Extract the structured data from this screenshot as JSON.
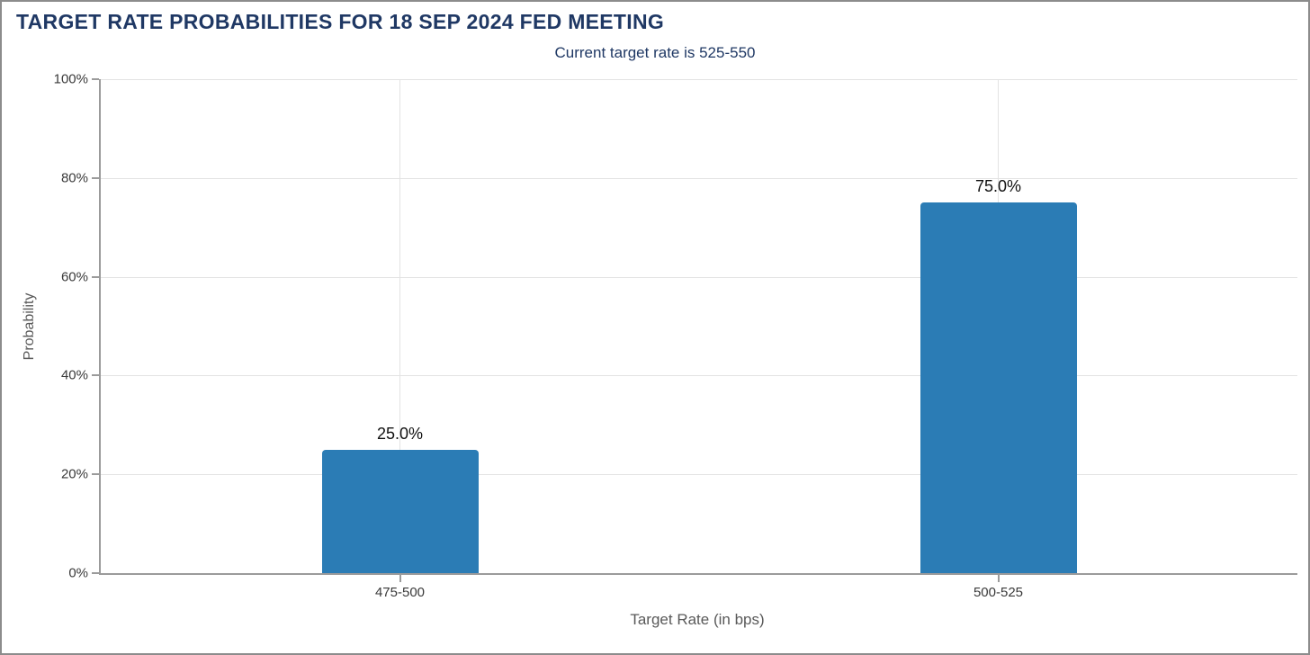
{
  "chart_data": {
    "type": "bar",
    "title": "TARGET RATE PROBABILITIES FOR 18 SEP 2024 FED MEETING",
    "subtitle": "Current target rate is 525-550",
    "xlabel": "Target Rate (in bps)",
    "ylabel": "Probability",
    "categories": [
      "475-500",
      "500-525"
    ],
    "values": [
      25.0,
      75.0
    ],
    "value_labels": [
      "25.0%",
      "75.0%"
    ],
    "ylim": [
      0,
      100
    ],
    "yticks": [
      0,
      20,
      40,
      60,
      80,
      100
    ],
    "ytick_labels": [
      "0%",
      "20%",
      "40%",
      "60%",
      "80%",
      "100%"
    ],
    "grid": true,
    "legend": "none",
    "bar_color": "#2b7cb5",
    "title_color": "#1f3864",
    "grid_color": "#e3e3e3",
    "axis_color": "#9b9b9b"
  }
}
